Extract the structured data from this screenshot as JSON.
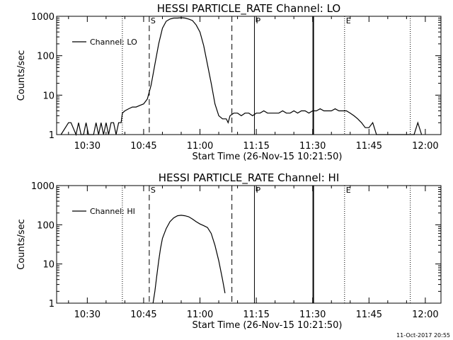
{
  "footer": {
    "timestamp": "11-Oct-2017 20:55"
  },
  "chart_data": [
    {
      "type": "line",
      "title": "HESSI PARTICLE_RATE Channel: LO",
      "xlabel": "Start Time (26-Nov-15 10:21:50)",
      "ylabel": "Counts/sec",
      "yscale": "log",
      "ylim": [
        1,
        1000
      ],
      "xlim": [
        "10:21:50",
        "12:04:10"
      ],
      "x_ticks": [
        "10:30",
        "10:45",
        "11:00",
        "11:15",
        "11:30",
        "11:45",
        "12:00"
      ],
      "y_ticks": [
        "1",
        "10",
        "100",
        "1000"
      ],
      "legend": {
        "position": "top-left"
      },
      "series": [
        {
          "name": "Channel: LO",
          "x": [
            "10:23:00",
            "10:25:00",
            "10:25:40",
            "10:27:00",
            "10:27:40",
            "10:28:20",
            "10:29:00",
            "10:29:40",
            "10:30:20",
            "10:31:40",
            "10:32:20",
            "10:33:00",
            "10:33:40",
            "10:34:20",
            "10:35:00",
            "10:35:40",
            "10:36:20",
            "10:37:00",
            "10:37:40",
            "10:38:20",
            "10:39:00",
            "10:39:20",
            "10:40:00",
            "10:41:00",
            "10:42:00",
            "10:43:00",
            "10:44:00",
            "10:45:00",
            "10:46:00",
            "10:47:00",
            "10:48:00",
            "10:49:00",
            "10:50:00",
            "10:51:00",
            "10:52:00",
            "10:53:00",
            "10:54:00",
            "10:55:00",
            "10:56:00",
            "10:57:00",
            "10:58:00",
            "10:59:00",
            "11:00:00",
            "11:01:00",
            "11:02:00",
            "11:03:00",
            "11:04:00",
            "11:05:00",
            "11:06:00",
            "11:07:00",
            "11:07:30",
            "11:08:00",
            "11:09:00",
            "11:10:00",
            "11:11:00",
            "11:12:00",
            "11:13:00",
            "11:14:00",
            "11:15:00",
            "11:16:00",
            "11:17:00",
            "11:18:00",
            "11:19:00",
            "11:20:00",
            "11:21:00",
            "11:22:00",
            "11:23:00",
            "11:24:00",
            "11:25:00",
            "11:26:00",
            "11:27:00",
            "11:28:00",
            "11:29:00",
            "11:30:00",
            "11:31:00",
            "11:32:00",
            "11:33:00",
            "11:34:00",
            "11:35:00",
            "11:36:00",
            "11:37:00",
            "11:38:00",
            "11:39:00",
            "11:40:00",
            "11:41:00",
            "11:42:00",
            "11:43:00",
            "11:44:00",
            "11:45:00",
            "11:46:00",
            "11:47:00",
            "11:48:00",
            "11:49:00",
            "11:50:00",
            "11:51:00",
            "11:52:00",
            "11:53:00",
            "11:54:00",
            "11:55:00",
            "11:56:00",
            "11:57:00",
            "11:58:00",
            "11:59:00"
          ],
          "values": [
            1,
            2,
            2,
            1,
            2,
            1,
            1,
            2,
            1,
            1,
            2,
            1,
            2,
            1,
            2,
            1,
            2,
            2,
            1,
            2,
            2,
            3.5,
            4,
            4.5,
            5,
            5,
            5.5,
            6,
            8,
            18,
            60,
            200,
            500,
            750,
            850,
            900,
            900,
            920,
            900,
            850,
            780,
            600,
            400,
            180,
            60,
            20,
            6,
            3,
            2.5,
            2.5,
            2,
            3,
            3.5,
            3.5,
            3,
            3.5,
            3.5,
            3,
            3.5,
            3.5,
            4,
            3.5,
            3.5,
            3.5,
            3.5,
            4,
            3.5,
            3.5,
            4,
            3.5,
            4,
            4,
            3.5,
            4,
            4,
            4.5,
            4,
            4,
            4,
            4.5,
            4,
            4,
            4,
            3.5,
            3,
            2.5,
            2,
            1.5,
            1.5,
            2,
            1,
            1,
            1,
            1,
            1,
            1,
            1,
            1,
            1,
            1,
            1,
            2,
            1
          ]
        }
      ],
      "markers": [
        {
          "x": "10:39:20",
          "style": "dotted",
          "label": ""
        },
        {
          "x": "10:46:30",
          "style": "dashed",
          "label": "S"
        },
        {
          "x": "11:08:30",
          "style": "dashed",
          "label": ""
        },
        {
          "x": "11:14:30",
          "style": "solid",
          "label": "P"
        },
        {
          "x": "11:30:10",
          "style": "solid-heavy",
          "label": ""
        },
        {
          "x": "11:38:30",
          "style": "dotted",
          "label": "E"
        },
        {
          "x": "11:56:00",
          "style": "dotted",
          "label": ""
        }
      ]
    },
    {
      "type": "line",
      "title": "HESSI PARTICLE_RATE Channel: HI",
      "xlabel": "Start Time (26-Nov-15 10:21:50)",
      "ylabel": "Counts/sec",
      "yscale": "log",
      "ylim": [
        1,
        1000
      ],
      "xlim": [
        "10:21:50",
        "12:04:10"
      ],
      "x_ticks": [
        "10:30",
        "10:45",
        "11:00",
        "11:15",
        "11:30",
        "11:45",
        "12:00"
      ],
      "y_ticks": [
        "1",
        "10",
        "100",
        "1000"
      ],
      "legend": {
        "position": "top-left"
      },
      "series": [
        {
          "name": "Channel: HI",
          "x": [
            "10:47:30",
            "10:48:00",
            "10:48:30",
            "10:49:00",
            "10:49:30",
            "10:50:00",
            "10:51:00",
            "10:52:00",
            "10:53:00",
            "10:54:00",
            "10:55:00",
            "10:56:00",
            "10:57:00",
            "10:58:00",
            "10:59:00",
            "11:00:00",
            "11:01:00",
            "11:02:00",
            "11:03:00",
            "11:04:00",
            "11:05:00",
            "11:06:00",
            "11:06:40"
          ],
          "values": [
            1,
            2,
            5,
            12,
            25,
            45,
            80,
            120,
            150,
            170,
            175,
            170,
            160,
            140,
            120,
            105,
            95,
            85,
            60,
            30,
            12,
            4,
            1.8
          ]
        }
      ],
      "markers": [
        {
          "x": "10:39:20",
          "style": "dotted",
          "label": ""
        },
        {
          "x": "10:46:30",
          "style": "dashed",
          "label": "S"
        },
        {
          "x": "11:08:30",
          "style": "dashed",
          "label": ""
        },
        {
          "x": "11:14:30",
          "style": "solid",
          "label": "P"
        },
        {
          "x": "11:30:10",
          "style": "solid-heavy",
          "label": ""
        },
        {
          "x": "11:38:30",
          "style": "dotted",
          "label": "E"
        },
        {
          "x": "11:56:00",
          "style": "dotted",
          "label": ""
        }
      ]
    }
  ]
}
